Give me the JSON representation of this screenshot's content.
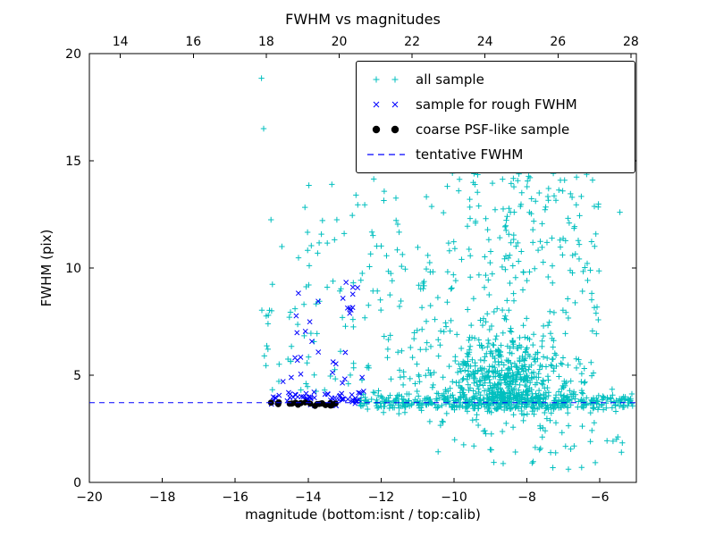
{
  "chart_data": {
    "type": "scatter",
    "title": "FWHM vs magnitudes",
    "xlabel": "magnitude (bottom:isnt / top:calib)",
    "ylabel": "FWHM (pix)",
    "xlim": [
      -20,
      -5
    ],
    "ylim": [
      0,
      20
    ],
    "x_ticks_bottom": [
      -20,
      -18,
      -16,
      -14,
      -12,
      -10,
      -8,
      -6
    ],
    "x_ticks_top_labels": [
      14,
      16,
      18,
      20,
      22,
      24,
      26,
      28
    ],
    "top_axis_offset": 33.15,
    "y_ticks": [
      0,
      5,
      10,
      15,
      20
    ],
    "tentative_fwhm": 3.72,
    "colors": {
      "all_sample": "#00bfbf",
      "rough_fwhm": "#0000ff",
      "psf_like": "#000000",
      "tentative_line": "#0000ff"
    },
    "legend": {
      "entries": [
        {
          "marker": "plus",
          "color": "#00bfbf",
          "label": "all sample"
        },
        {
          "marker": "x",
          "color": "#0000ff",
          "label": "sample for rough FWHM"
        },
        {
          "marker": "dot",
          "color": "#000000",
          "label": "coarse PSF-like sample"
        },
        {
          "marker": "dashed",
          "color": "#0000ff",
          "label": "tentative FWHM"
        }
      ]
    },
    "series": [
      {
        "name": "all sample",
        "marker": "plus",
        "color": "#00bfbf",
        "clusters": [
          {
            "n": 430,
            "seed": 11,
            "x": {
              "t": "u",
              "a": -12.6,
              "b": -5.05
            },
            "y": {
              "t": "n",
              "a": 3.75,
              "b": 0.22,
              "lo": 3.15,
              "hi": 4.5
            }
          },
          {
            "n": 520,
            "seed": 12,
            "x": {
              "t": "n",
              "a": -8.5,
              "b": 0.95,
              "lo": -11.2,
              "hi": -6.2
            },
            "y": {
              "t": "an",
              "a": 3.4,
              "b": 1.9,
              "lo": 3.4,
              "hi": 12.5
            }
          },
          {
            "n": 200,
            "seed": 13,
            "x": {
              "t": "u",
              "a": -11.6,
              "b": -6.0
            },
            "y": {
              "t": "u",
              "a": 4.5,
              "b": 11.5
            }
          },
          {
            "n": 90,
            "seed": 14,
            "x": {
              "t": "n",
              "a": -8.3,
              "b": 1.3,
              "lo": -11.5,
              "hi": -5.8
            },
            "y": {
              "t": "u",
              "a": 11,
              "b": 14.6
            }
          },
          {
            "n": 70,
            "seed": 15,
            "x": {
              "t": "u",
              "a": -15.35,
              "b": -11.6
            },
            "y": {
              "t": "u",
              "a": 4.2,
              "b": 9.5
            }
          },
          {
            "n": 40,
            "seed": 16,
            "x": {
              "t": "u",
              "a": -14.6,
              "b": -11.3
            },
            "y": {
              "t": "u",
              "a": 9,
              "b": 14.2
            }
          },
          {
            "n": 55,
            "seed": 17,
            "x": {
              "t": "u",
              "a": -10.8,
              "b": -5.1
            },
            "y": {
              "t": "u",
              "a": 1.3,
              "b": 3.3
            }
          },
          {
            "n": 8,
            "seed": 18,
            "x": {
              "t": "u",
              "a": -9.5,
              "b": -5.3
            },
            "y": {
              "t": "u",
              "a": 0.55,
              "b": 1.25
            }
          }
        ],
        "points": [
          [
            -15.28,
            18.85
          ],
          [
            -15.22,
            16.5
          ],
          [
            -15.02,
            12.25
          ],
          [
            -14.72,
            11.0
          ],
          [
            -13.35,
            13.9
          ],
          [
            -12.2,
            14.15
          ],
          [
            -9.45,
            14.4
          ],
          [
            -8.2,
            14.6
          ],
          [
            -6.2,
            14.1
          ],
          [
            -5.45,
            12.6
          ],
          [
            -15.1,
            7.4
          ],
          [
            -15.2,
            5.9
          ]
        ]
      },
      {
        "name": "sample for rough FWHM",
        "marker": "x",
        "color": "#0000ff",
        "clusters": [
          {
            "n": 62,
            "seed": 21,
            "x": {
              "t": "u",
              "a": -15.05,
              "b": -12.45
            },
            "y": {
              "t": "n",
              "a": 3.95,
              "b": 0.22,
              "lo": 3.55,
              "hi": 4.6
            }
          },
          {
            "n": 14,
            "seed": 22,
            "x": {
              "t": "u",
              "a": -14.7,
              "b": -12.5
            },
            "y": {
              "t": "u",
              "a": 4.6,
              "b": 6.8
            }
          },
          {
            "n": 10,
            "seed": 23,
            "x": {
              "t": "n",
              "a": -12.85,
              "b": 0.18,
              "lo": -13.3,
              "hi": -12.5
            },
            "y": {
              "t": "u",
              "a": 7.8,
              "b": 9.35
            }
          },
          {
            "n": 6,
            "seed": 24,
            "x": {
              "t": "u",
              "a": -14.6,
              "b": -13.6
            },
            "y": {
              "t": "u",
              "a": 6.8,
              "b": 8.9
            }
          }
        ],
        "points": [
          [
            -12.52,
            4.9
          ],
          [
            -12.48,
            4.25
          ]
        ]
      },
      {
        "name": "coarse PSF-like sample",
        "marker": "dot",
        "color": "#000000",
        "clusters": [
          {
            "n": 10,
            "seed": 31,
            "x": {
              "t": "u",
              "a": -14.85,
              "b": -14.25
            },
            "y": {
              "t": "n",
              "a": 3.68,
              "b": 0.06,
              "lo": 3.52,
              "hi": 3.82
            }
          },
          {
            "n": 12,
            "seed": 32,
            "x": {
              "t": "u",
              "a": -13.95,
              "b": -13.3
            },
            "y": {
              "t": "n",
              "a": 3.66,
              "b": 0.06,
              "lo": 3.5,
              "hi": 3.8
            }
          }
        ],
        "points": [
          [
            -15.02,
            3.72
          ],
          [
            -14.2,
            3.7
          ],
          [
            -14.08,
            3.73
          ],
          [
            -13.25,
            3.68
          ]
        ]
      }
    ]
  }
}
